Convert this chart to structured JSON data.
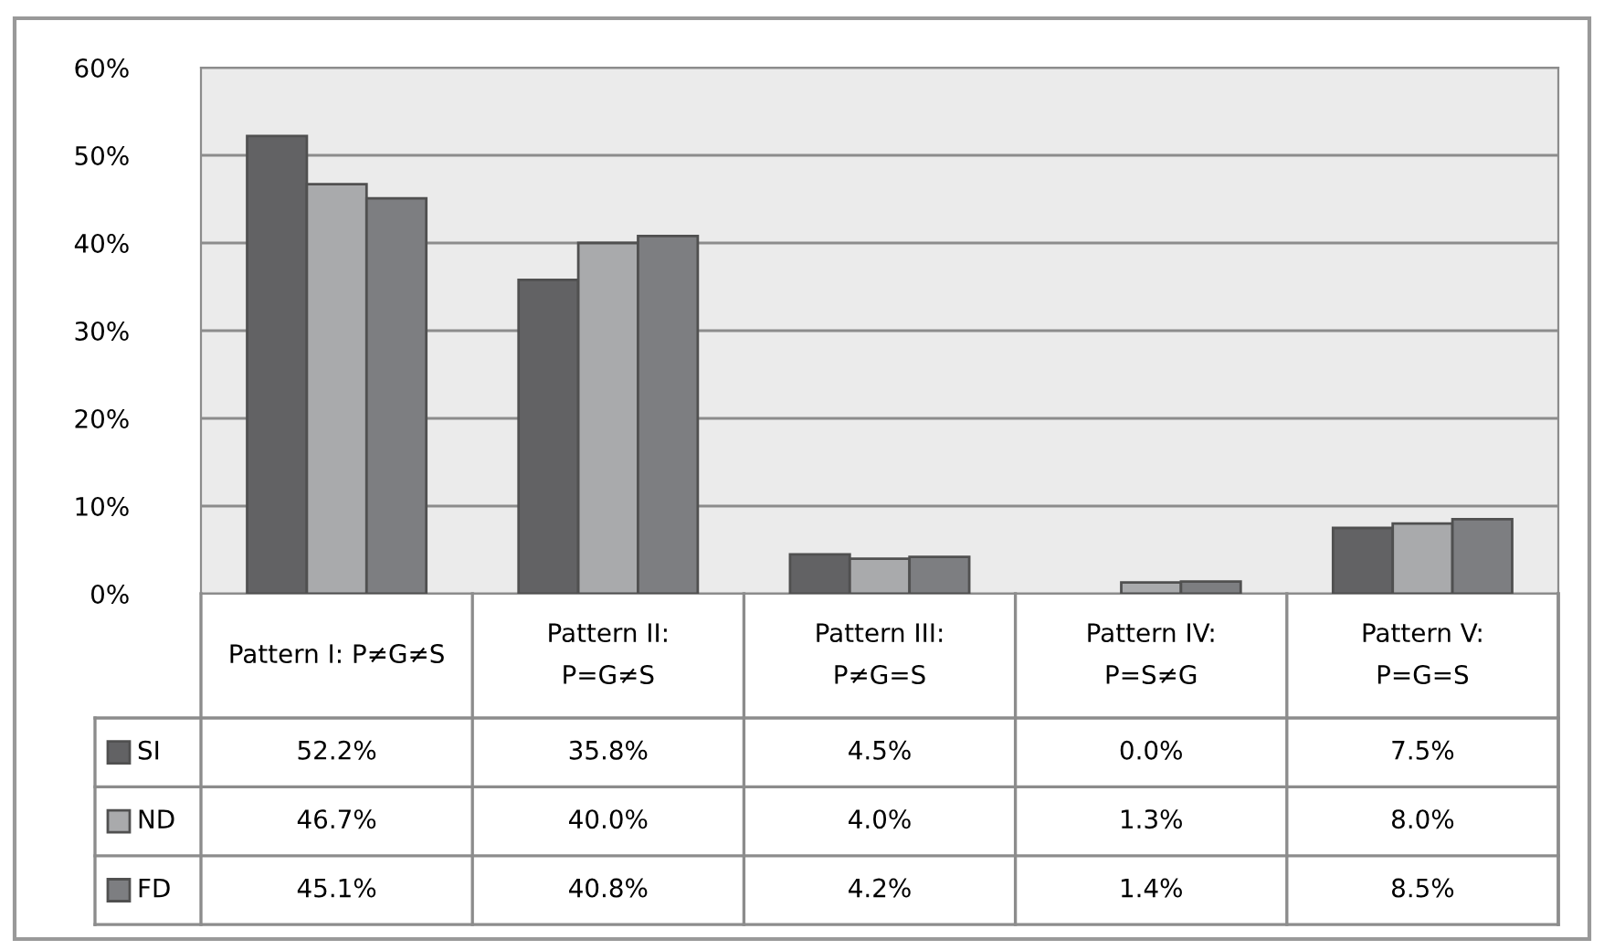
{
  "chart_data": {
    "type": "bar",
    "categories": [
      "Pattern I: P≠G≠S",
      "Pattern II:\nP=G≠S",
      "Pattern III:\nP≠G=S",
      "Pattern IV:\nP=S≠G",
      "Pattern V:\nP=G=S"
    ],
    "series": [
      {
        "name": "SI",
        "color": "#626264",
        "values": [
          52.2,
          35.8,
          4.5,
          0.0,
          7.5
        ],
        "value_labels": [
          "52.2%",
          "35.8%",
          "4.5%",
          "0.0%",
          "7.5%"
        ]
      },
      {
        "name": "ND",
        "color": "#a9aaac",
        "values": [
          46.7,
          40.0,
          4.0,
          1.3,
          8.0
        ],
        "value_labels": [
          "46.7%",
          "40.0%",
          "4.0%",
          "1.3%",
          "8.0%"
        ]
      },
      {
        "name": "FD",
        "color": "#7d7e81",
        "values": [
          45.1,
          40.8,
          4.2,
          1.4,
          8.5
        ],
        "value_labels": [
          "45.1%",
          "40.8%",
          "4.2%",
          "1.4%",
          "8.5%"
        ]
      }
    ],
    "ylim": [
      0,
      60
    ],
    "yticks": [
      {
        "value": 0,
        "label": "0%"
      },
      {
        "value": 10,
        "label": "10%"
      },
      {
        "value": 20,
        "label": "20%"
      },
      {
        "value": 30,
        "label": "30%"
      },
      {
        "value": 40,
        "label": "40%"
      },
      {
        "value": 50,
        "label": "50%"
      },
      {
        "value": 60,
        "label": "60%"
      }
    ],
    "grid": "y",
    "legend": "bottom"
  }
}
